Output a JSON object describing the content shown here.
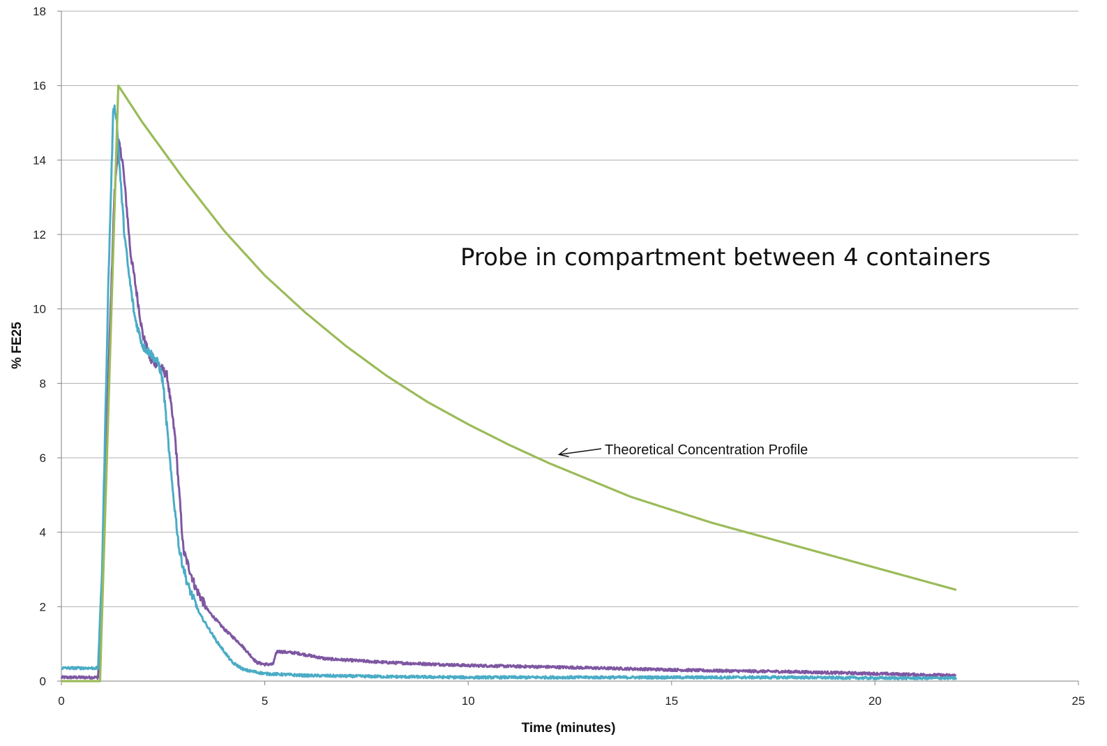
{
  "chart_data": {
    "type": "line",
    "title": "Probe in compartment between 4 containers",
    "xlabel": "Time (minutes)",
    "ylabel": "% FE25",
    "xlim": [
      0,
      25
    ],
    "ylim": [
      0,
      18
    ],
    "x_ticks": [
      "0",
      "5",
      "10",
      "15",
      "20",
      "25"
    ],
    "y_ticks": [
      "0",
      "2",
      "4",
      "6",
      "8",
      "10",
      "12",
      "14",
      "16",
      "18"
    ],
    "grid": "horizontal",
    "legend": "none",
    "annotation": {
      "text": "Theoretical Concentration Profile",
      "x": 12.2,
      "y": 6.05
    },
    "series": [
      {
        "name": "Theoretical Concentration Profile",
        "color": "#9bbb59",
        "x": [
          0,
          0.95,
          1.4,
          2,
          3,
          4,
          5,
          6,
          7,
          8,
          9,
          10,
          11,
          12,
          13,
          14,
          15,
          16,
          17,
          18,
          19,
          20,
          21,
          22
        ],
        "y": [
          0,
          0,
          16.0,
          15.0,
          13.5,
          12.1,
          10.9,
          9.9,
          9.0,
          8.2,
          7.5,
          6.9,
          6.35,
          5.85,
          5.4,
          4.95,
          4.6,
          4.25,
          3.95,
          3.65,
          3.35,
          3.05,
          2.75,
          2.45
        ]
      },
      {
        "color": "#7e57a2",
        "x": [
          0,
          0.5,
          0.9,
          1.0,
          1.15,
          1.3,
          1.4,
          1.5,
          1.6,
          1.7,
          1.8,
          2.0,
          2.2,
          2.4,
          2.6,
          2.8,
          3.0,
          3.3,
          3.6,
          4.0,
          4.4,
          4.8,
          5.0,
          5.2,
          5.3,
          5.8,
          6.5,
          8,
          10,
          12,
          14,
          16,
          18,
          20,
          22
        ],
        "y": [
          0.1,
          0.1,
          0.1,
          2.0,
          8.0,
          13.0,
          14.5,
          14.0,
          12.8,
          11.5,
          10.8,
          9.3,
          8.6,
          8.5,
          8.2,
          6.5,
          3.5,
          2.5,
          1.9,
          1.4,
          1.0,
          0.5,
          0.45,
          0.45,
          0.8,
          0.75,
          0.6,
          0.5,
          0.42,
          0.38,
          0.33,
          0.28,
          0.25,
          0.2,
          0.15
        ]
      },
      {
        "color": "#4bacc6",
        "x": [
          0,
          0.5,
          0.9,
          1.0,
          1.15,
          1.28,
          1.35,
          1.45,
          1.55,
          1.65,
          1.8,
          2.0,
          2.2,
          2.4,
          2.5,
          2.7,
          2.9,
          3.1,
          3.4,
          3.8,
          4.2,
          4.5,
          5.0,
          6.0,
          8,
          10,
          12,
          15,
          18,
          20,
          22
        ],
        "y": [
          0.35,
          0.35,
          0.35,
          3.0,
          10.5,
          15.5,
          15.2,
          13.5,
          12.0,
          11.0,
          9.8,
          9.0,
          8.8,
          8.5,
          8.0,
          5.5,
          3.5,
          2.6,
          1.8,
          1.1,
          0.5,
          0.3,
          0.2,
          0.15,
          0.12,
          0.1,
          0.1,
          0.1,
          0.1,
          0.08,
          0.08
        ]
      }
    ]
  }
}
